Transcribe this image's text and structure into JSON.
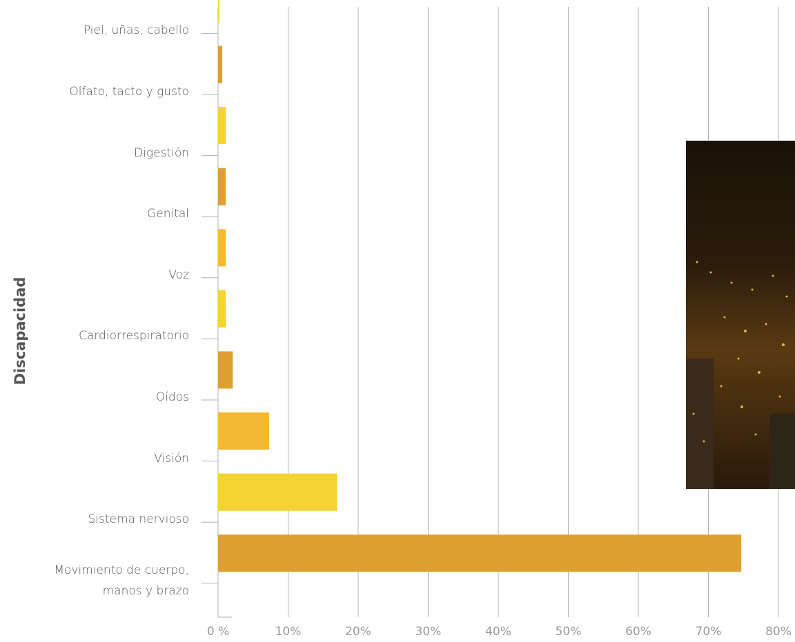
{
  "chart_data": {
    "type": "bar",
    "orientation": "horizontal",
    "y_label": "Discapacidad",
    "categories": [
      "Piel, uñas, cabello",
      "Olfato, tacto y gusto",
      "Digestión",
      "Genital",
      "Voz",
      "Cardiorrespiratorio",
      "Oídos",
      "Visión",
      "Sistema nervioso",
      "Movimiento de cuerpo, manos y brazo"
    ],
    "values": [
      0.2,
      0.6,
      1.1,
      1.1,
      1.1,
      1.1,
      2.1,
      7.3,
      17.0,
      74.7
    ],
    "colors": [
      "#f5d334",
      "#e0a030",
      "#f5d334",
      "#e0a030",
      "#f5b834",
      "#f5d334",
      "#e0a030",
      "#f5b834",
      "#f5d334",
      "#e0a030"
    ],
    "xlim": [
      0,
      80
    ],
    "xticks": [
      {
        "value": 0,
        "label": "0 %"
      },
      {
        "value": 10,
        "label": "10%"
      },
      {
        "value": 20,
        "label": "20%"
      },
      {
        "value": 30,
        "label": "30%"
      },
      {
        "value": 40,
        "label": "40%"
      },
      {
        "value": 50,
        "label": "50%"
      },
      {
        "value": 60,
        "label": "60%"
      },
      {
        "value": 70,
        "label": "70%"
      },
      {
        "value": 80,
        "label": "80%"
      }
    ],
    "grid": true
  }
}
